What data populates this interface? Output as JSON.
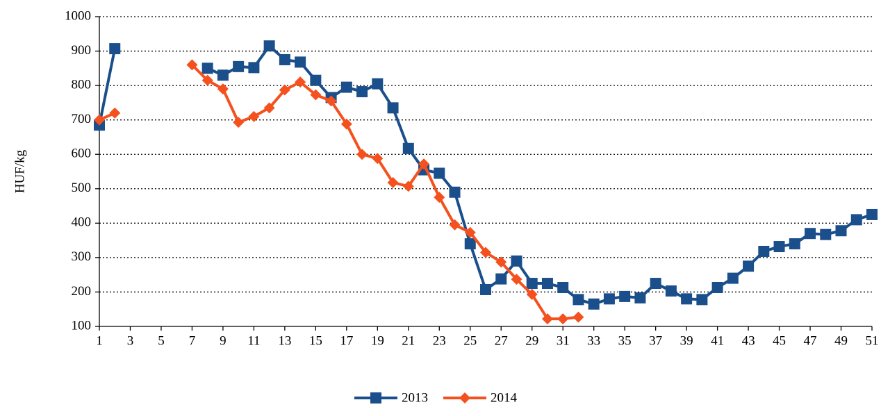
{
  "chart_data": {
    "type": "line",
    "y_label": "HUF/kg",
    "x": [
      1,
      2,
      3,
      4,
      5,
      6,
      7,
      8,
      9,
      10,
      11,
      12,
      13,
      14,
      15,
      16,
      17,
      18,
      19,
      20,
      21,
      22,
      23,
      24,
      25,
      26,
      27,
      28,
      29,
      30,
      31,
      32,
      33,
      34,
      35,
      36,
      37,
      38,
      39,
      40,
      41,
      42,
      43,
      44,
      45,
      46,
      47,
      48,
      49,
      50,
      51
    ],
    "xlim": [
      1,
      51
    ],
    "xticks": [
      1,
      3,
      5,
      7,
      9,
      11,
      13,
      15,
      17,
      19,
      21,
      23,
      25,
      27,
      29,
      31,
      33,
      35,
      37,
      39,
      41,
      43,
      45,
      47,
      49,
      51
    ],
    "ylim": [
      100,
      1000
    ],
    "yticks": [
      100,
      200,
      300,
      400,
      500,
      600,
      700,
      800,
      900,
      1000
    ],
    "grid": true,
    "legend": "bottom",
    "series": [
      {
        "name": "2013",
        "color": "#1a4f8b",
        "marker": "square",
        "values": [
          685,
          907,
          null,
          null,
          null,
          null,
          null,
          850,
          830,
          855,
          852,
          915,
          875,
          868,
          815,
          765,
          795,
          782,
          805,
          735,
          617,
          555,
          545,
          490,
          340,
          207,
          238,
          290,
          225,
          225,
          213,
          178,
          165,
          180,
          187,
          183,
          225,
          203,
          180,
          178,
          213,
          240,
          275,
          318,
          332,
          340,
          370,
          367,
          378,
          410,
          425
        ]
      },
      {
        "name": "2014",
        "color": "#f4511e",
        "marker": "diamond",
        "values": [
          700,
          720,
          null,
          null,
          null,
          null,
          860,
          815,
          790,
          693,
          710,
          735,
          787,
          810,
          773,
          755,
          688,
          600,
          588,
          518,
          507,
          572,
          475,
          395,
          373,
          315,
          287,
          237,
          193,
          122,
          122,
          127,
          null,
          null,
          null,
          null,
          null,
          null,
          null,
          null,
          null,
          null,
          null,
          null,
          null,
          null,
          null,
          null,
          null,
          null,
          null
        ]
      }
    ]
  }
}
